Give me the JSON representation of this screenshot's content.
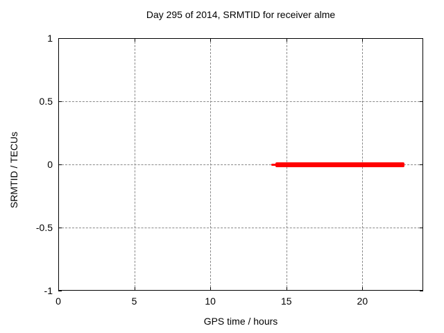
{
  "title": "Day 295 of 2014, SRMTID for receiver alme",
  "chart_data": {
    "type": "line",
    "title": "Day 295 of 2014, SRMTID for receiver alme",
    "xlabel": "GPS time / hours",
    "ylabel": "SRMTID / TECUs",
    "xlim": [
      0,
      24
    ],
    "ylim": [
      -1,
      1
    ],
    "xticks": [
      {
        "value": 0,
        "label": "0"
      },
      {
        "value": 5,
        "label": "5"
      },
      {
        "value": 10,
        "label": "10"
      },
      {
        "value": 15,
        "label": "15"
      },
      {
        "value": 20,
        "label": "20"
      }
    ],
    "yticks": [
      {
        "value": 1,
        "label": "1"
      },
      {
        "value": 0.5,
        "label": "0.5"
      },
      {
        "value": 0,
        "label": "0"
      },
      {
        "value": -0.5,
        "label": "-0.5"
      },
      {
        "value": -1,
        "label": "-1"
      }
    ],
    "grid": true,
    "grid_style": "dashed",
    "legend": "none",
    "series": [
      {
        "name": "SRMTID",
        "color": "#ff0000",
        "y": 0,
        "segments": [
          {
            "x1": 14.0,
            "x2": 14.45,
            "y": 0,
            "linewidth": 3
          },
          {
            "x1": 14.28,
            "x2": 22.75,
            "y": 0,
            "linewidth": 7
          }
        ]
      }
    ],
    "colors": {
      "line": "#ff0000",
      "grid": "#888888",
      "axis": "#000000",
      "text": "#000000",
      "background": "#ffffff"
    }
  }
}
